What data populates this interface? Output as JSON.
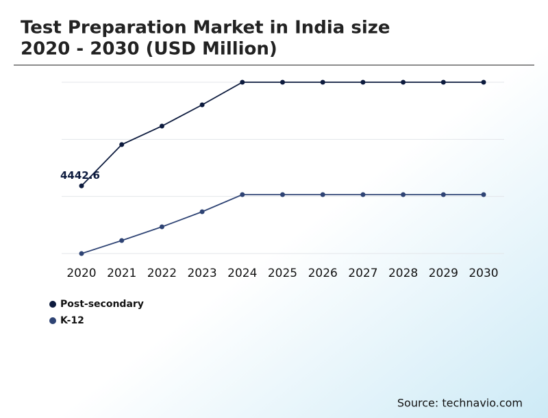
{
  "chart_data": {
    "type": "line",
    "title": "Test Preparation Market in India size",
    "subtitle": "2020 - 2030 (USD Million)",
    "categories": [
      "2020",
      "2021",
      "2022",
      "2023",
      "2024",
      "2025",
      "2026",
      "2027",
      "2028",
      "2029",
      "2030"
    ],
    "series": [
      {
        "name": "Post-secondary",
        "color": "#0d1b3e",
        "values": [
          4442.6,
          7155,
          8370,
          9765,
          11250,
          11250,
          11250,
          11250,
          11250,
          11250,
          11250
        ],
        "value_labels": [
          "4442.6",
          null,
          null,
          null,
          null,
          null,
          null,
          null,
          null,
          null,
          null
        ]
      },
      {
        "name": "K-12",
        "color": "#2e4374",
        "values": [
          0,
          855,
          1755,
          2745,
          3870,
          3870,
          3870,
          3870,
          3870,
          3870,
          3870
        ]
      }
    ],
    "ylim": [
      0,
      11250
    ],
    "yticks": [
      0,
      3750,
      7500,
      11250
    ],
    "ytick_labels_shown": false,
    "grid": true,
    "source": "Source: technavio.com"
  }
}
